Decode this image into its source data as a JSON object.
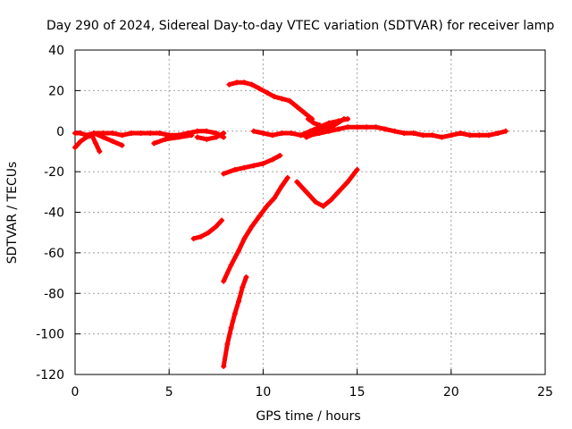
{
  "chart_data": {
    "type": "scatter",
    "title": "Day 290 of 2024, Sidereal Day-to-day VTEC variation (SDTVAR) for receiver lamp",
    "xlabel": "GPS time / hours",
    "ylabel": "SDTVAR / TECUs",
    "xlim": [
      0,
      25
    ],
    "ylim": [
      -120,
      40
    ],
    "x_ticks": [
      0,
      5,
      10,
      15,
      20,
      25
    ],
    "y_ticks": [
      40,
      20,
      0,
      -20,
      -40,
      -60,
      -80,
      -100,
      -120
    ],
    "grid": true,
    "legend": "none",
    "marker_color": "#ff0000",
    "series": [
      {
        "x": [
          0,
          0.3,
          0.6,
          1.0,
          1.5,
          2.0,
          2.5,
          3.0,
          3.5,
          4.0,
          4.5,
          5.0,
          5.5,
          6.0,
          6.5,
          7.0,
          7.5,
          7.9
        ],
        "y": [
          -1,
          -1,
          -2,
          -1,
          -1,
          -1,
          -2,
          -1,
          -1,
          -1,
          -1,
          -2,
          -2,
          -1,
          0,
          0,
          -1,
          -3
        ]
      },
      {
        "x": [
          0,
          0.3,
          0.6,
          0.9
        ],
        "y": [
          -8,
          -5,
          -3,
          -2
        ]
      },
      {
        "x": [
          0.9,
          1.1,
          1.3
        ],
        "y": [
          -2,
          -6,
          -10
        ]
      },
      {
        "x": [
          1.0,
          1.5,
          2.0,
          2.5
        ],
        "y": [
          -1,
          -3,
          -5,
          -7
        ]
      },
      {
        "x": [
          4.2,
          4.8,
          5.5,
          6.2
        ],
        "y": [
          -6,
          -4,
          -3,
          -2
        ]
      },
      {
        "x": [
          6.5,
          7.0,
          7.5,
          7.9
        ],
        "y": [
          -3,
          -4,
          -3,
          -1
        ]
      },
      {
        "x": [
          8.2,
          8.6,
          9.0,
          9.4,
          9.8,
          10.2,
          10.6,
          11.0,
          11.4,
          11.8,
          12.2,
          12.6
        ],
        "y": [
          23,
          24,
          24,
          23,
          21,
          19,
          17,
          16,
          15,
          12,
          9,
          6
        ]
      },
      {
        "x": [
          7.9,
          8.5,
          9.0,
          9.5,
          10.0,
          10.5,
          10.9
        ],
        "y": [
          -21,
          -19,
          -18,
          -17,
          -16,
          -14,
          -12
        ]
      },
      {
        "x": [
          6.3,
          6.7,
          7.1,
          7.5,
          7.8
        ],
        "y": [
          -53,
          -52,
          -50,
          -47,
          -44
        ]
      },
      {
        "x": [
          7.9,
          8.3,
          8.7,
          9.0,
          9.4,
          9.8,
          10.2,
          10.6,
          11.0,
          11.3
        ],
        "y": [
          -74,
          -66,
          -59,
          -53,
          -47,
          -42,
          -37,
          -33,
          -27,
          -23
        ]
      },
      {
        "x": [
          7.9,
          8.1,
          8.3,
          8.5,
          8.7,
          8.9,
          9.1
        ],
        "y": [
          -116,
          -105,
          -97,
          -90,
          -84,
          -77,
          -72
        ]
      },
      {
        "x": [
          11.8,
          12.3,
          12.8,
          13.2,
          13.6,
          14.0,
          14.5,
          15.0
        ],
        "y": [
          -25,
          -30,
          -35,
          -37,
          -34,
          -30,
          -25,
          -19
        ]
      },
      {
        "x": [
          9.5,
          10.0,
          10.5,
          11.0,
          11.5,
          12.0,
          12.5,
          13.0,
          13.5,
          14.0,
          14.5,
          15.0,
          15.5,
          16.0,
          16.5,
          17.0,
          17.5,
          18.0,
          18.5,
          19.0,
          19.5,
          20.0,
          20.5,
          21.0,
          21.5,
          22.0,
          22.5,
          22.9
        ],
        "y": [
          0,
          -1,
          -2,
          -1,
          -1,
          -2,
          -2,
          -1,
          0,
          1,
          2,
          2,
          2,
          2,
          1,
          0,
          -1,
          -1,
          -2,
          -2,
          -3,
          -2,
          -1,
          -2,
          -2,
          -2,
          -1,
          0
        ]
      },
      {
        "x": [
          12.0,
          12.5,
          13.0,
          13.5,
          14.0,
          14.5
        ],
        "y": [
          -2,
          0,
          2,
          4,
          5,
          6
        ]
      },
      {
        "x": [
          12.3,
          12.8,
          13.3,
          13.8,
          14.3
        ],
        "y": [
          -3,
          -1,
          1,
          3,
          6
        ]
      },
      {
        "x": [
          12.4,
          12.7,
          13.0
        ],
        "y": [
          6,
          4,
          3
        ]
      }
    ]
  }
}
